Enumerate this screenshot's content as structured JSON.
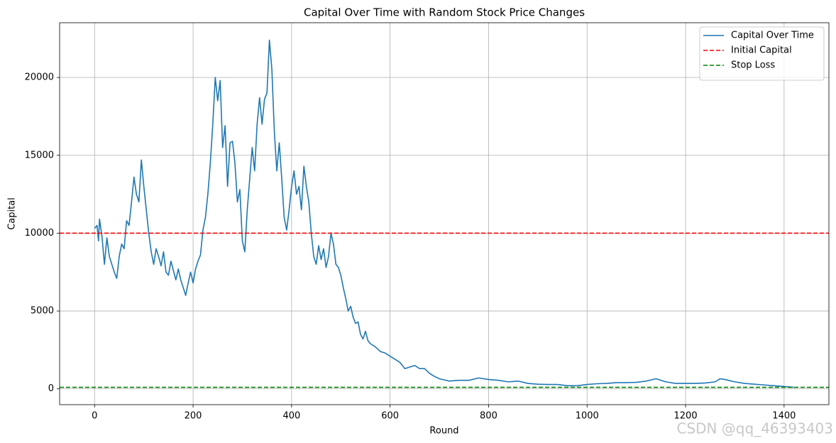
{
  "chart_data": {
    "type": "line",
    "title": "Capital Over Time with Random Stock Price Changes",
    "xlabel": "Round",
    "ylabel": "Capital",
    "watermark": "CSDN @qq_46393403",
    "x": [
      0,
      5,
      8,
      10,
      15,
      20,
      25,
      30,
      35,
      40,
      45,
      50,
      55,
      60,
      65,
      70,
      75,
      80,
      85,
      90,
      95,
      100,
      105,
      110,
      115,
      120,
      125,
      130,
      135,
      140,
      145,
      150,
      155,
      160,
      165,
      170,
      175,
      180,
      185,
      190,
      195,
      200,
      205,
      210,
      215,
      220,
      225,
      230,
      235,
      240,
      245,
      250,
      255,
      260,
      265,
      270,
      275,
      280,
      285,
      290,
      295,
      300,
      305,
      310,
      315,
      320,
      325,
      330,
      335,
      340,
      345,
      350,
      355,
      360,
      365,
      370,
      375,
      380,
      385,
      390,
      395,
      400,
      405,
      410,
      415,
      420,
      425,
      430,
      435,
      440,
      445,
      450,
      455,
      460,
      465,
      470,
      475,
      480,
      485,
      490,
      495,
      500,
      505,
      510,
      515,
      520,
      525,
      530,
      535,
      540,
      545,
      550,
      555,
      560,
      570,
      580,
      590,
      600,
      610,
      620,
      630,
      640,
      650,
      660,
      670,
      680,
      690,
      700,
      720,
      740,
      760,
      780,
      800,
      820,
      840,
      860,
      880,
      900,
      920,
      940,
      960,
      980,
      1000,
      1020,
      1040,
      1060,
      1080,
      1100,
      1120,
      1140,
      1160,
      1180,
      1200,
      1220,
      1240,
      1260,
      1270,
      1280,
      1300,
      1320,
      1340,
      1360,
      1380,
      1400,
      1420
    ],
    "series": [
      {
        "name": "Capital Over Time",
        "color": "#1f77b4",
        "values": [
          10300,
          10500,
          9500,
          10900,
          9800,
          8000,
          9700,
          8500,
          8000,
          7500,
          7100,
          8500,
          9300,
          9000,
          10800,
          10500,
          12000,
          13600,
          12500,
          12000,
          14700,
          13000,
          11500,
          10000,
          8800,
          8000,
          9000,
          8500,
          7900,
          8800,
          7500,
          7300,
          8200,
          7600,
          7000,
          7700,
          7000,
          6500,
          6000,
          6800,
          7500,
          6800,
          7700,
          8200,
          8600,
          10200,
          11000,
          12500,
          14500,
          17000,
          20000,
          18500,
          19800,
          15500,
          16900,
          13000,
          15800,
          15900,
          14500,
          12000,
          12800,
          9500,
          8800,
          11500,
          13500,
          15500,
          14000,
          17000,
          18700,
          17000,
          18600,
          19000,
          22400,
          20500,
          16500,
          14000,
          15800,
          13500,
          11000,
          10200,
          11500,
          13000,
          14000,
          12500,
          13000,
          11500,
          14300,
          13000,
          12000,
          10000,
          8500,
          8000,
          9200,
          8300,
          9000,
          7800,
          8500,
          10000,
          9300,
          8000,
          7800,
          7300,
          6500,
          5800,
          5000,
          5300,
          4600,
          4200,
          4300,
          3500,
          3200,
          3700,
          3100,
          2900,
          2700,
          2400,
          2300,
          2100,
          1900,
          1700,
          1300,
          1400,
          1500,
          1300,
          1300,
          1000,
          800,
          650,
          500,
          550,
          550,
          700,
          600,
          550,
          450,
          500,
          350,
          300,
          280,
          280,
          200,
          200,
          280,
          330,
          350,
          400,
          400,
          420,
          500,
          650,
          450,
          350,
          350,
          350,
          380,
          450,
          650,
          600,
          450,
          350,
          300,
          250,
          200,
          150,
          100
        ]
      }
    ],
    "hlines": [
      {
        "name": "Initial Capital",
        "value": 10000,
        "color": "#ff0000",
        "dashed": true
      },
      {
        "name": "Stop Loss",
        "value": 100,
        "color": "#008000",
        "dashed": true
      }
    ],
    "xlim": [
      -71,
      1491
    ],
    "ylim": [
      -1015,
      23515
    ],
    "xticks": [
      0,
      200,
      400,
      600,
      800,
      1000,
      1200,
      1400
    ],
    "yticks": [
      0,
      5000,
      10000,
      15000,
      20000
    ],
    "grid": true,
    "legend": "upper right"
  }
}
